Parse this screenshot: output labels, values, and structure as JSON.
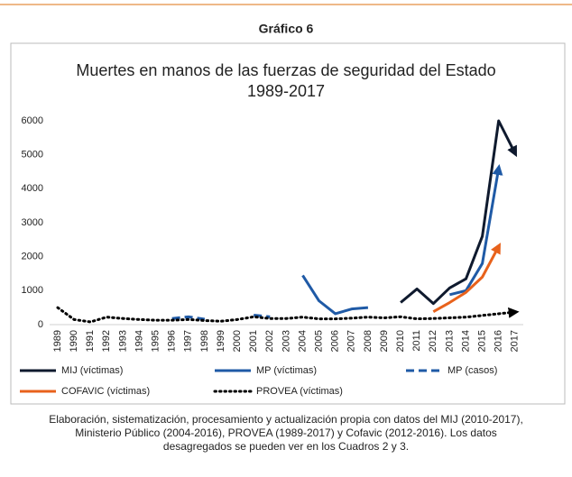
{
  "header": "Gráfico 6",
  "chart_data": {
    "type": "line",
    "title": [
      "Muertes en manos de las fuerzas de seguridad del Estado",
      "1989-2017"
    ],
    "categories": [
      "1989",
      "1990",
      "1991",
      "1992",
      "1993",
      "1994",
      "1995",
      "1996",
      "1997",
      "1998",
      "1999",
      "2000",
      "2001",
      "2002",
      "2003",
      "2004",
      "2005",
      "2006",
      "2007",
      "2008",
      "2009",
      "2010",
      "2011",
      "2012",
      "2013",
      "2014",
      "2015",
      "2016",
      "2017"
    ],
    "ylim": [
      0,
      6000
    ],
    "yticks": [
      0,
      1000,
      2000,
      3000,
      4000,
      5000,
      6000
    ],
    "series": [
      {
        "name": "MIJ (víctimas)",
        "color": "#0f1a2e",
        "dash": "solid",
        "arrow": true,
        "values": [
          null,
          null,
          null,
          null,
          null,
          null,
          null,
          null,
          null,
          null,
          null,
          null,
          null,
          null,
          null,
          null,
          null,
          null,
          null,
          null,
          null,
          650,
          1050,
          620,
          1080,
          1350,
          2600,
          6000,
          5050
        ]
      },
      {
        "name": "MP (víctimas)",
        "color": "#1f5aa6",
        "dash": "solid",
        "arrow": true,
        "values": [
          null,
          null,
          null,
          null,
          null,
          null,
          null,
          null,
          null,
          null,
          null,
          null,
          null,
          null,
          null,
          1450,
          700,
          320,
          460,
          500,
          null,
          null,
          null,
          null,
          880,
          1000,
          1800,
          4600,
          null
        ]
      },
      {
        "name": "MP (casos)",
        "color": "#1f5aa6",
        "dash": "dashed",
        "arrow": false,
        "values": [
          null,
          null,
          null,
          null,
          null,
          null,
          null,
          180,
          230,
          160,
          null,
          null,
          280,
          230,
          null,
          null,
          null,
          null,
          null,
          null,
          null,
          null,
          null,
          null,
          null,
          null,
          null,
          null,
          null
        ]
      },
      {
        "name": "COFAVIC (víctimas)",
        "color": "#e8621c",
        "dash": "solid",
        "arrow": true,
        "values": [
          null,
          null,
          null,
          null,
          null,
          null,
          null,
          null,
          null,
          null,
          null,
          null,
          null,
          null,
          null,
          null,
          null,
          null,
          null,
          null,
          null,
          null,
          null,
          380,
          650,
          950,
          1400,
          2300,
          null
        ]
      },
      {
        "name": "PROVEA (víctimas)",
        "color": "#000000",
        "dash": "dotted",
        "arrow": true,
        "values": [
          500,
          150,
          80,
          220,
          180,
          150,
          130,
          130,
          150,
          120,
          100,
          150,
          230,
          180,
          180,
          220,
          170,
          170,
          190,
          220,
          200,
          230,
          170,
          180,
          200,
          220,
          270,
          320,
          370
        ]
      }
    ]
  },
  "caption": [
    "Elaboración, sistematización, procesamiento y actualización propia con datos del MIJ (2010-2017),",
    "Ministerio Público (2004-2016), PROVEA (1989-2017) y Cofavic (2012-2016). Los datos",
    "desagregados se pueden ver en los Cuadros 2 y 3."
  ]
}
